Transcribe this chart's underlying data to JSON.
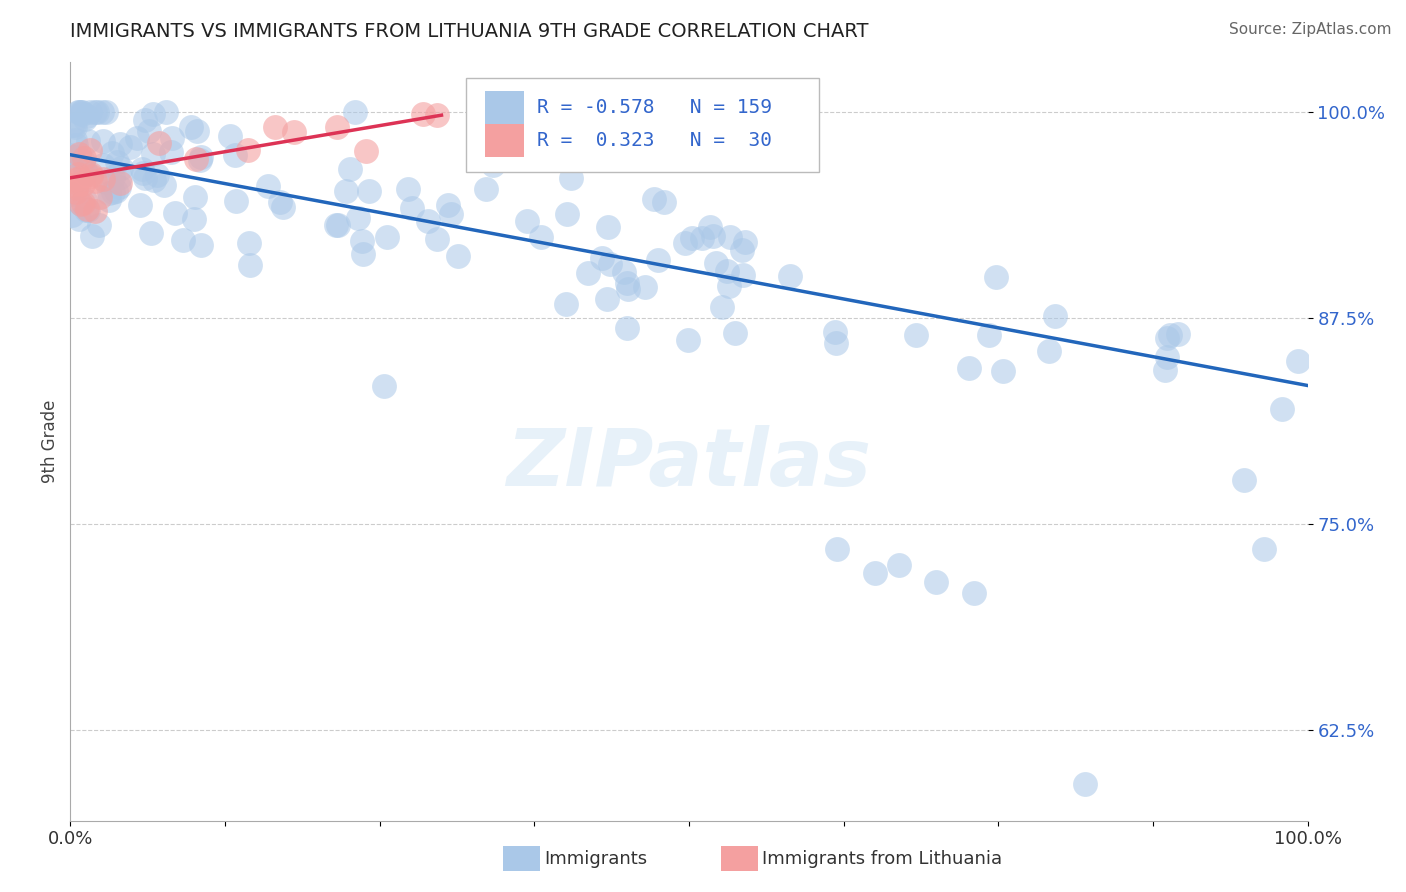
{
  "title": "IMMIGRANTS VS IMMIGRANTS FROM LITHUANIA 9TH GRADE CORRELATION CHART",
  "source": "Source: ZipAtlas.com",
  "ylabel": "9th Grade",
  "watermark": "ZIPatlas",
  "xlim": [
    0.0,
    1.0
  ],
  "ylim": [
    0.57,
    1.03
  ],
  "yticks": [
    0.625,
    0.75,
    0.875,
    1.0
  ],
  "ytick_labels": [
    "62.5%",
    "75.0%",
    "87.5%",
    "100.0%"
  ],
  "legend_blue_r": "-0.578",
  "legend_blue_n": "159",
  "legend_pink_r": "0.323",
  "legend_pink_n": "30",
  "blue_scatter_color": "#aac8e8",
  "pink_scatter_color": "#f4a0a0",
  "blue_line_color": "#2266bb",
  "pink_line_color": "#dd3355",
  "legend_text_color": "#3366cc",
  "background_color": "#ffffff",
  "grid_color": "#cccccc",
  "blue_trend_y_start": 0.974,
  "blue_trend_y_end": 0.834,
  "pink_trend_x_start": 0.0,
  "pink_trend_x_end": 0.3,
  "pink_trend_y_start": 0.96,
  "pink_trend_y_end": 0.998
}
